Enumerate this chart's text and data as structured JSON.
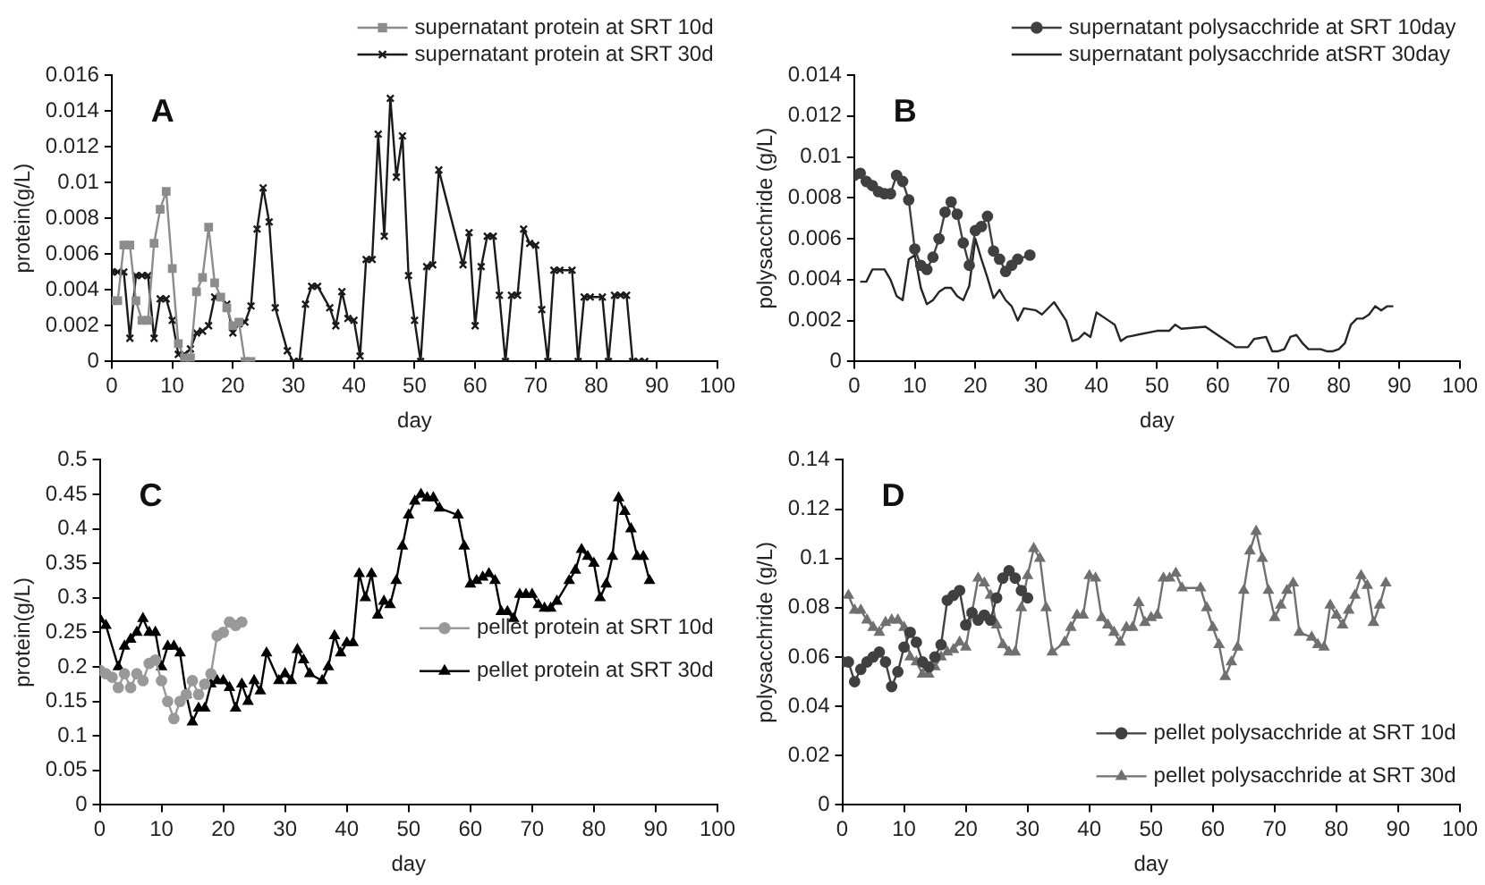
{
  "chart_data": [
    {
      "type": "line",
      "annotations": [
        "A"
      ],
      "xlabel": "day",
      "ylabel": "protein(g/L)",
      "xlim": [
        0,
        100
      ],
      "xticks": [
        0,
        10,
        20,
        30,
        40,
        50,
        60,
        70,
        80,
        90,
        100
      ],
      "ylim": [
        0,
        0.016
      ],
      "yticks": [
        0,
        0.002,
        0.004,
        0.006,
        0.008,
        0.01,
        0.012,
        0.014,
        0.016
      ],
      "grid": false,
      "legend": "top right",
      "series": [
        {
          "name": "supernatant protein at SRT 10d",
          "color": "#8c8c8c",
          "marker": "square",
          "x": [
            0,
            1,
            2,
            3,
            4,
            5,
            6,
            7,
            8,
            9,
            10,
            11,
            12,
            13,
            14,
            15,
            16,
            17,
            18,
            19,
            20,
            21,
            22,
            23
          ],
          "values": [
            0.0034,
            0.0034,
            0.0065,
            0.0065,
            0.0034,
            0.0023,
            0.0023,
            0.0066,
            0.0085,
            0.0095,
            0.0052,
            0.001,
            0.0002,
            0.0002,
            0.0039,
            0.0047,
            0.0075,
            0.0044,
            0.0036,
            0.003,
            0.002,
            0.0022,
            0,
            0
          ]
        },
        {
          "name": "supernatant protein at SRT 30d",
          "color": "#1a1a1a",
          "marker": "cross",
          "x": [
            0,
            1,
            2,
            3,
            4,
            5,
            6,
            7,
            8,
            9,
            10,
            11,
            12,
            13,
            14,
            15,
            16,
            17,
            18,
            19,
            20,
            21,
            22,
            23,
            24,
            25,
            26,
            27,
            29,
            30,
            31,
            32,
            33,
            34,
            36,
            37,
            38,
            39,
            40,
            41,
            42,
            43,
            44,
            45,
            46,
            47,
            48,
            49,
            50,
            51,
            52,
            53,
            54,
            58,
            59,
            60,
            61,
            62,
            63,
            64,
            65,
            66,
            67,
            68,
            69,
            70,
            71,
            72,
            73,
            74,
            76,
            77,
            78,
            79,
            81,
            82,
            83,
            84,
            85,
            86,
            87,
            88
          ],
          "values": [
            0.005,
            0.005,
            0.005,
            0.0013,
            0.0048,
            0.0048,
            0.0048,
            0.0013,
            0.0035,
            0.0035,
            0.0023,
            0.0004,
            0.0004,
            0.0007,
            0.0016,
            0.0017,
            0.002,
            0.0036,
            0.0036,
            0.0032,
            0.0016,
            0.0021,
            0.0022,
            0.0031,
            0.0074,
            0.0097,
            0.0078,
            0.003,
            0.0006,
            0,
            0,
            0.0032,
            0.0042,
            0.0042,
            0.003,
            0.002,
            0.0039,
            0.0024,
            0.0023,
            0.0003,
            0.0057,
            0.0057,
            0.0127,
            0.007,
            0.0147,
            0.0103,
            0.0126,
            0.0048,
            0.0023,
            0,
            0.0053,
            0.0054,
            0.0107,
            0.0054,
            0.0072,
            0.002,
            0.0053,
            0.007,
            0.007,
            0.0037,
            0,
            0.0037,
            0.0037,
            0.0074,
            0.0066,
            0.0065,
            0.0029,
            0,
            0.0051,
            0.0051,
            0.0051,
            0,
            0.0036,
            0.0036,
            0.0036,
            0,
            0.0037,
            0.0037,
            0.0037,
            0,
            0,
            0
          ]
        }
      ]
    },
    {
      "type": "line",
      "annotations": [
        "B"
      ],
      "xlabel": "day",
      "ylabel": "polysacchride (g/L)",
      "xlim": [
        0,
        100
      ],
      "xticks": [
        0,
        10,
        20,
        30,
        40,
        50,
        60,
        70,
        80,
        90,
        100
      ],
      "ylim": [
        0,
        0.014
      ],
      "yticks": [
        0,
        0.002,
        0.004,
        0.006,
        0.008,
        0.01,
        0.012,
        0.014
      ],
      "grid": false,
      "legend": "top right",
      "series": [
        {
          "name": "supernatant polysacchride at SRT 10day",
          "color": "#404040",
          "marker": "circle",
          "x": [
            0,
            1,
            2,
            3,
            4,
            5,
            6,
            7,
            8,
            9,
            10,
            11,
            12,
            13,
            14,
            15,
            16,
            17,
            18,
            19,
            20,
            21,
            22,
            23,
            24,
            25,
            26,
            27,
            29
          ],
          "values": [
            0.0091,
            0.0092,
            0.0088,
            0.0086,
            0.0083,
            0.0082,
            0.0082,
            0.0091,
            0.0088,
            0.0079,
            0.0055,
            0.0047,
            0.0045,
            0.0051,
            0.006,
            0.0073,
            0.0078,
            0.0072,
            0.0058,
            0.0047,
            0.0064,
            0.0066,
            0.0071,
            0.0054,
            0.005,
            0.0044,
            0.0047,
            0.005,
            0.0052
          ]
        },
        {
          "name": "supernatant polysacchride atSRT 30day",
          "color": "#262626",
          "marker": "none",
          "x": [
            1,
            2,
            3,
            4,
            5,
            6,
            7,
            8,
            9,
            10,
            11,
            12,
            13,
            14,
            15,
            16,
            17,
            18,
            19,
            20,
            21,
            22,
            23,
            24,
            25,
            26,
            27,
            28,
            30,
            31,
            33,
            35,
            36,
            37,
            38,
            39,
            40,
            42,
            43,
            44,
            45,
            50,
            52,
            53,
            54,
            58,
            60,
            62,
            63,
            65,
            66,
            68,
            69,
            70,
            71,
            72,
            73,
            74,
            75,
            77,
            78,
            79,
            80,
            81,
            82,
            83,
            84,
            85,
            86,
            87,
            88,
            89
          ],
          "values": [
            0.0039,
            0.0039,
            0.0045,
            0.0045,
            0.0045,
            0.004,
            0.0032,
            0.003,
            0.005,
            0.0052,
            0.0036,
            0.0028,
            0.003,
            0.0034,
            0.0036,
            0.0036,
            0.0032,
            0.003,
            0.0037,
            0.006,
            0.005,
            0.0041,
            0.0031,
            0.0035,
            0.003,
            0.0027,
            0.002,
            0.0026,
            0.0025,
            0.0023,
            0.0029,
            0.002,
            0.001,
            0.0011,
            0.0014,
            0.0012,
            0.0024,
            0.002,
            0.0018,
            0.001,
            0.0012,
            0.0015,
            0.0015,
            0.0018,
            0.0016,
            0.0017,
            0.0013,
            0.0009,
            0.0007,
            0.0007,
            0.0011,
            0.0012,
            0.0005,
            0.0005,
            0.0006,
            0.0012,
            0.0013,
            0.0009,
            0.0006,
            0.0006,
            0.0005,
            0.0005,
            0.0006,
            0.0009,
            0.0018,
            0.0021,
            0.0021,
            0.0023,
            0.0027,
            0.0025,
            0.0027,
            0.0027
          ]
        }
      ]
    },
    {
      "type": "line",
      "annotations": [
        "C"
      ],
      "xlabel": "day",
      "ylabel": "protein(g/L)",
      "xlim": [
        0,
        100
      ],
      "xticks": [
        0,
        10,
        20,
        30,
        40,
        50,
        60,
        70,
        80,
        90,
        100
      ],
      "ylim": [
        0,
        0.5
      ],
      "yticks": [
        0,
        0.05,
        0.1,
        0.15,
        0.2,
        0.25,
        0.3,
        0.35,
        0.4,
        0.45,
        0.5
      ],
      "grid": false,
      "legend": "right",
      "series": [
        {
          "name": "pellet protein at SRT 10d",
          "color": "#999999",
          "marker": "circle",
          "x": [
            0,
            1,
            2,
            3,
            4,
            5,
            6,
            7,
            8,
            9,
            10,
            11,
            12,
            13,
            14,
            15,
            16,
            17,
            18,
            19,
            20,
            21,
            22,
            23
          ],
          "values": [
            0.195,
            0.19,
            0.185,
            0.17,
            0.19,
            0.17,
            0.19,
            0.18,
            0.205,
            0.21,
            0.18,
            0.15,
            0.125,
            0.15,
            0.16,
            0.18,
            0.16,
            0.175,
            0.19,
            0.245,
            0.25,
            0.265,
            0.26,
            0.265
          ]
        },
        {
          "name": "pellet protein at SRT 30d",
          "color": "#000000",
          "marker": "triangle",
          "x": [
            0,
            1,
            3,
            4,
            5,
            6,
            7,
            8,
            9,
            10,
            11,
            12,
            13,
            14,
            15,
            16,
            17,
            18,
            19,
            20,
            21,
            22,
            23,
            24,
            25,
            26,
            27,
            29,
            30,
            31,
            32,
            33,
            34,
            36,
            37,
            38,
            39,
            40,
            41,
            42,
            43,
            44,
            45,
            46,
            47,
            48,
            49,
            50,
            51,
            52,
            53,
            54,
            55,
            58,
            59,
            60,
            61,
            62,
            63,
            64,
            65,
            66,
            67,
            68,
            69,
            70,
            71,
            72,
            73,
            74,
            76,
            77,
            78,
            79,
            80,
            81,
            82,
            83,
            84,
            85,
            86,
            87,
            88,
            89
          ],
          "values": [
            0.27,
            0.26,
            0.2,
            0.23,
            0.24,
            0.25,
            0.27,
            0.25,
            0.25,
            0.2,
            0.23,
            0.23,
            0.22,
            0.16,
            0.12,
            0.14,
            0.14,
            0.175,
            0.18,
            0.18,
            0.17,
            0.14,
            0.175,
            0.15,
            0.18,
            0.165,
            0.22,
            0.18,
            0.19,
            0.18,
            0.225,
            0.21,
            0.19,
            0.18,
            0.2,
            0.245,
            0.22,
            0.235,
            0.235,
            0.335,
            0.3,
            0.335,
            0.275,
            0.295,
            0.29,
            0.325,
            0.375,
            0.42,
            0.44,
            0.45,
            0.445,
            0.445,
            0.43,
            0.42,
            0.375,
            0.32,
            0.325,
            0.33,
            0.335,
            0.325,
            0.28,
            0.28,
            0.27,
            0.305,
            0.305,
            0.305,
            0.29,
            0.285,
            0.285,
            0.295,
            0.325,
            0.34,
            0.37,
            0.36,
            0.35,
            0.3,
            0.32,
            0.36,
            0.445,
            0.425,
            0.4,
            0.36,
            0.36,
            0.325
          ]
        }
      ]
    },
    {
      "type": "line",
      "annotations": [
        "D"
      ],
      "xlabel": "day",
      "ylabel": "polysacchride (g/L)",
      "xlim": [
        0,
        100
      ],
      "xticks": [
        0,
        10,
        20,
        30,
        40,
        50,
        60,
        70,
        80,
        90,
        100
      ],
      "ylim": [
        0,
        0.14
      ],
      "yticks": [
        0,
        0.02,
        0.04,
        0.06,
        0.08,
        0.1,
        0.12,
        0.14
      ],
      "grid": false,
      "legend": "bottom right",
      "series": [
        {
          "name": "pellet polysacchride at SRT 10d",
          "color": "#404040",
          "marker": "circle",
          "x": [
            0,
            1,
            2,
            3,
            4,
            5,
            6,
            7,
            8,
            9,
            10,
            11,
            12,
            13,
            14,
            15,
            16,
            17,
            18,
            19,
            20,
            21,
            22,
            23,
            24,
            25,
            26,
            27,
            28,
            29,
            30
          ],
          "values": [
            0.058,
            0.058,
            0.05,
            0.055,
            0.058,
            0.06,
            0.062,
            0.058,
            0.048,
            0.054,
            0.064,
            0.07,
            0.066,
            0.058,
            0.056,
            0.06,
            0.065,
            0.083,
            0.085,
            0.087,
            0.073,
            0.078,
            0.075,
            0.077,
            0.075,
            0.084,
            0.092,
            0.095,
            0.092,
            0.087,
            0.084
          ]
        },
        {
          "name": "pellet polysacchride at SRT 30d",
          "color": "#707070",
          "marker": "triangle",
          "x": [
            1,
            2,
            3,
            4,
            5,
            6,
            7,
            8,
            9,
            10,
            11,
            12,
            13,
            14,
            15,
            16,
            17,
            18,
            19,
            20,
            21,
            22,
            23,
            24,
            25,
            26,
            27,
            28,
            29,
            30,
            31,
            32,
            33,
            34,
            36,
            37,
            38,
            39,
            40,
            41,
            42,
            43,
            44,
            45,
            46,
            47,
            48,
            49,
            50,
            51,
            52,
            53,
            54,
            55,
            58,
            59,
            60,
            61,
            62,
            63,
            64,
            65,
            66,
            67,
            68,
            69,
            70,
            71,
            72,
            73,
            74,
            76,
            77,
            78,
            79,
            80,
            81,
            82,
            83,
            84,
            85,
            86,
            87,
            88
          ],
          "values": [
            0.085,
            0.079,
            0.079,
            0.075,
            0.072,
            0.07,
            0.074,
            0.075,
            0.075,
            0.072,
            0.06,
            0.058,
            0.053,
            0.053,
            0.056,
            0.06,
            0.062,
            0.063,
            0.066,
            0.064,
            0.078,
            0.092,
            0.09,
            0.085,
            0.073,
            0.065,
            0.062,
            0.062,
            0.08,
            0.093,
            0.104,
            0.1,
            0.08,
            0.062,
            0.066,
            0.072,
            0.077,
            0.077,
            0.093,
            0.092,
            0.076,
            0.073,
            0.07,
            0.066,
            0.072,
            0.072,
            0.082,
            0.074,
            0.076,
            0.077,
            0.092,
            0.092,
            0.094,
            0.088,
            0.088,
            0.08,
            0.072,
            0.065,
            0.052,
            0.058,
            0.064,
            0.087,
            0.103,
            0.111,
            0.1,
            0.087,
            0.076,
            0.081,
            0.087,
            0.09,
            0.07,
            0.068,
            0.065,
            0.064,
            0.081,
            0.077,
            0.073,
            0.079,
            0.085,
            0.093,
            0.089,
            0.074,
            0.081,
            0.09
          ]
        }
      ]
    }
  ]
}
